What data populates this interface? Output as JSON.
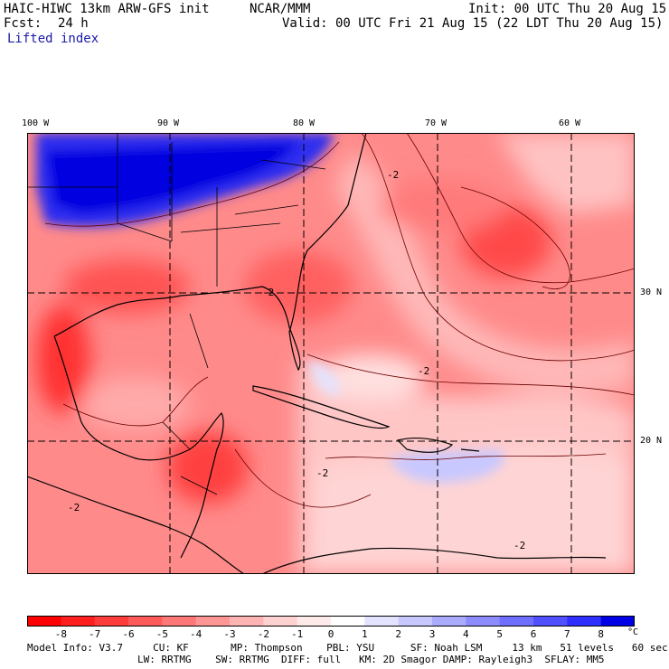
{
  "header": {
    "model": "HAIC-HIWC 13km ARW-GFS init",
    "center": "NCAR/MMM",
    "init": "Init: 00 UTC Thu 20 Aug 15",
    "fcst_label": "Fcst:",
    "fcst_value": "24 h",
    "valid": "Valid: 00 UTC Fri 21 Aug 15 (22 LDT Thu 20 Aug 15)",
    "field": "Lifted index"
  },
  "map": {
    "lon_labels": [
      "100 W",
      "90 W",
      "80 W",
      "70 W",
      "60 W"
    ],
    "lat_labels": [
      "30 N",
      "20 N"
    ],
    "contour_label": "-2"
  },
  "colorbar": {
    "values": [
      "-8",
      "-7",
      "-6",
      "-5",
      "-4",
      "-3",
      "-2",
      "-1",
      "0",
      "1",
      "2",
      "3",
      "4",
      "5",
      "6",
      "7",
      "8"
    ],
    "unit": "°C",
    "colors": [
      "#ff0000",
      "#ff1f1f",
      "#ff3c3c",
      "#ff5a5a",
      "#ff7878",
      "#ff9696",
      "#ffb4b4",
      "#ffd2d2",
      "#ffeaea",
      "#ffffff",
      "#e3e3ff",
      "#c8c8ff",
      "#aaaaff",
      "#8c8cff",
      "#6e6eff",
      "#5050ff",
      "#2f2fff",
      "#0000e6"
    ]
  },
  "footer": {
    "line1": "Model Info: V3.7     CU: KF       MP: Thompson    PBL: YSU      SF: Noah LSM     13 km   51 levels   60 sec",
    "line2": "LW: RRTMG    SW: RRTMG  DIFF: full   KM: 2D Smagor DAMP: Rayleigh3  SFLAY: MM5"
  }
}
